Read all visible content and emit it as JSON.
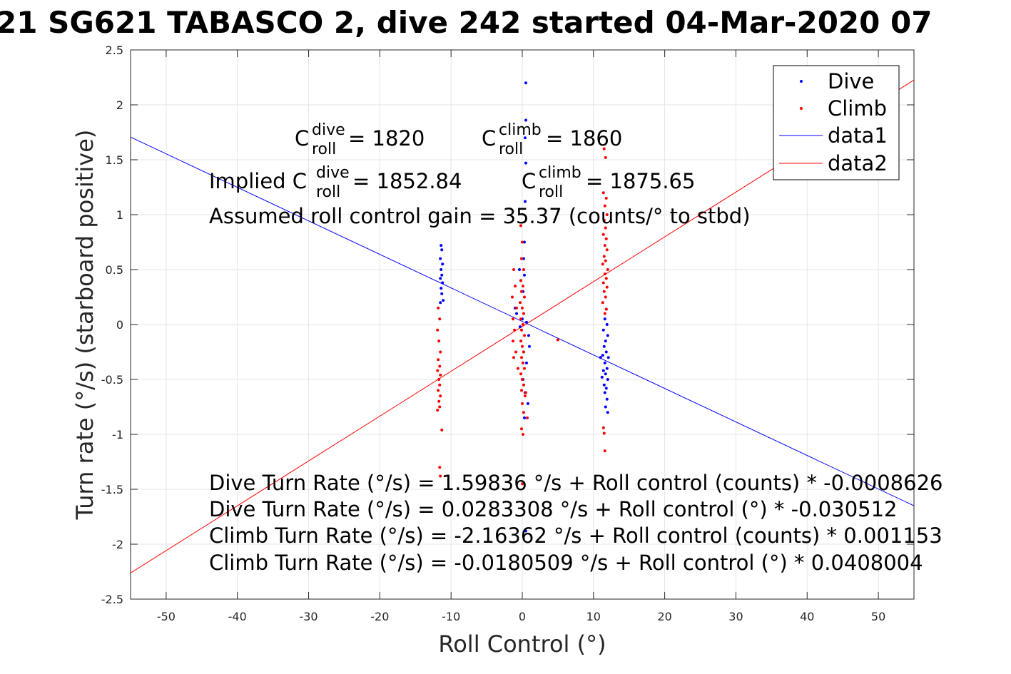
{
  "chart_data": {
    "type": "scatter",
    "title": "21 SG621 TABASCO 2, dive 242 started 04-Mar-2020 07",
    "xlabel": "Roll Control (°)",
    "ylabel": "Turn rate (°/s) (starboard positive)",
    "xlim": [
      -55,
      55
    ],
    "ylim": [
      -2.5,
      2.5
    ],
    "x_ticks": [
      "-50",
      "-40",
      "-30",
      "-20",
      "-10",
      "0",
      "10",
      "20",
      "30",
      "40",
      "50"
    ],
    "y_ticks": [
      "2.5",
      "2",
      "1.5",
      "1",
      "0.5",
      "0",
      "-0.5",
      "-1",
      "-1.5",
      "-2",
      "-2.5"
    ],
    "grid": true,
    "legend": {
      "placement": "top-right",
      "entries": [
        "Dive",
        "Climb",
        "data1",
        "data2"
      ]
    },
    "colors": {
      "dive": "#0000ff",
      "climb": "#ff0000"
    },
    "series": [
      {
        "name": "Dive",
        "marker": "dot",
        "points": [
          [
            -11.4,
            0.72
          ],
          [
            -11.3,
            0.68
          ],
          [
            -11.5,
            0.6
          ],
          [
            -11.2,
            0.55
          ],
          [
            -11.4,
            0.5
          ],
          [
            -11.3,
            0.45
          ],
          [
            -11.5,
            0.42
          ],
          [
            -11.2,
            0.38
          ],
          [
            -11.4,
            0.33
          ],
          [
            -11.3,
            0.28
          ],
          [
            -11.1,
            0.22
          ],
          [
            -11.5,
            0.2
          ],
          [
            0.5,
            2.2
          ],
          [
            0.5,
            1.86
          ],
          [
            0.4,
            1.7
          ],
          [
            0.5,
            1.47
          ],
          [
            0.4,
            1.12
          ],
          [
            0.3,
            0.75
          ],
          [
            0.2,
            0.6
          ],
          [
            -0.4,
            0.5
          ],
          [
            0.3,
            0.45
          ],
          [
            -0.2,
            0.4
          ],
          [
            0.1,
            0.3
          ],
          [
            -1.0,
            0.15
          ],
          [
            -0.8,
            0.1
          ],
          [
            0.0,
            0.05
          ],
          [
            0.6,
            0.02
          ],
          [
            -0.3,
            -0.02
          ],
          [
            0.9,
            -0.1
          ],
          [
            0.2,
            -0.25
          ],
          [
            0.6,
            -0.35
          ],
          [
            0.1,
            -0.5
          ],
          [
            0.4,
            -0.62
          ],
          [
            0.8,
            -0.72
          ],
          [
            0.3,
            -0.85
          ],
          [
            1.0,
            -0.2
          ],
          [
            0.5,
            -1.88
          ],
          [
            11.8,
            0.14
          ],
          [
            11.6,
            0.05
          ],
          [
            11.9,
            0.0
          ],
          [
            11.4,
            -0.05
          ],
          [
            12.0,
            -0.1
          ],
          [
            11.7,
            -0.15
          ],
          [
            11.5,
            -0.2
          ],
          [
            11.8,
            -0.25
          ],
          [
            11.3,
            -0.28
          ],
          [
            12.1,
            -0.3
          ],
          [
            11.6,
            -0.35
          ],
          [
            11.9,
            -0.4
          ],
          [
            11.4,
            -0.42
          ],
          [
            11.7,
            -0.45
          ],
          [
            11.2,
            -0.48
          ],
          [
            12.0,
            -0.5
          ],
          [
            11.5,
            -0.55
          ],
          [
            11.8,
            -0.58
          ],
          [
            11.6,
            -0.62
          ],
          [
            11.9,
            -0.68
          ],
          [
            11.7,
            -0.75
          ],
          [
            12.0,
            -0.8
          ],
          [
            11.0,
            -0.3
          ]
        ]
      },
      {
        "name": "Climb",
        "marker": "dot",
        "points": [
          [
            -11.8,
            0.15
          ],
          [
            -11.6,
            0.05
          ],
          [
            -11.9,
            -0.05
          ],
          [
            -11.7,
            -0.15
          ],
          [
            -11.5,
            -0.25
          ],
          [
            -11.8,
            -0.32
          ],
          [
            -11.6,
            -0.38
          ],
          [
            -11.9,
            -0.42
          ],
          [
            -11.5,
            -0.46
          ],
          [
            -11.7,
            -0.5
          ],
          [
            -11.6,
            -0.55
          ],
          [
            -11.8,
            -0.6
          ],
          [
            -11.5,
            -0.65
          ],
          [
            -11.7,
            -0.7
          ],
          [
            -11.6,
            -0.75
          ],
          [
            -11.9,
            -0.78
          ],
          [
            -11.3,
            -0.96
          ],
          [
            -11.6,
            -1.3
          ],
          [
            -11.5,
            -1.38
          ],
          [
            -1.2,
            0.5
          ],
          [
            -1.0,
            0.35
          ],
          [
            -1.4,
            0.25
          ],
          [
            -0.8,
            0.15
          ],
          [
            -1.3,
            0.05
          ],
          [
            -1.1,
            -0.05
          ],
          [
            -1.3,
            -0.15
          ],
          [
            -0.9,
            -0.25
          ],
          [
            -1.2,
            -0.3
          ],
          [
            -0.6,
            -0.4
          ],
          [
            -0.2,
            0.9
          ],
          [
            0.0,
            0.75
          ],
          [
            -0.1,
            0.6
          ],
          [
            0.2,
            0.5
          ],
          [
            -0.2,
            0.4
          ],
          [
            0.1,
            0.35
          ],
          [
            -0.1,
            0.3
          ],
          [
            0.3,
            0.25
          ],
          [
            -0.3,
            0.2
          ],
          [
            0.0,
            0.15
          ],
          [
            0.2,
            0.1
          ],
          [
            -0.2,
            0.05
          ],
          [
            0.1,
            0.0
          ],
          [
            -0.1,
            -0.05
          ],
          [
            0.3,
            -0.1
          ],
          [
            -0.2,
            -0.15
          ],
          [
            0.0,
            -0.2
          ],
          [
            0.2,
            -0.25
          ],
          [
            -0.1,
            -0.3
          ],
          [
            0.1,
            -0.35
          ],
          [
            0.3,
            -0.4
          ],
          [
            -0.2,
            -0.45
          ],
          [
            0.0,
            -0.5
          ],
          [
            0.2,
            -0.55
          ],
          [
            -0.1,
            -0.6
          ],
          [
            0.4,
            -0.65
          ],
          [
            0.0,
            -0.72
          ],
          [
            0.2,
            -0.8
          ],
          [
            0.7,
            -0.85
          ],
          [
            0.5,
            -0.62
          ],
          [
            -0.1,
            -0.95
          ],
          [
            0.1,
            -1.0
          ],
          [
            0.0,
            -1.45
          ],
          [
            5.0,
            -0.14
          ],
          [
            11.5,
            1.6
          ],
          [
            11.7,
            1.52
          ],
          [
            11.4,
            1.2
          ],
          [
            11.8,
            1.15
          ],
          [
            11.6,
            1.08
          ],
          [
            11.9,
            1.0
          ],
          [
            11.5,
            0.95
          ],
          [
            11.7,
            0.88
          ],
          [
            11.4,
            0.82
          ],
          [
            11.8,
            0.78
          ],
          [
            11.6,
            0.72
          ],
          [
            11.9,
            0.68
          ],
          [
            11.5,
            0.62
          ],
          [
            11.7,
            0.58
          ],
          [
            11.3,
            0.55
          ],
          [
            12.0,
            0.5
          ],
          [
            11.6,
            0.46
          ],
          [
            11.8,
            0.42
          ],
          [
            11.4,
            0.38
          ],
          [
            11.9,
            0.34
          ],
          [
            11.5,
            0.3
          ],
          [
            11.7,
            0.25
          ],
          [
            11.3,
            0.2
          ],
          [
            11.8,
            0.14
          ],
          [
            11.6,
            0.1
          ],
          [
            11.4,
            -0.94
          ],
          [
            11.5,
            -0.99
          ],
          [
            11.6,
            -1.15
          ]
        ]
      },
      {
        "name": "data1",
        "type": "line",
        "points": [
          [
            -55,
            1.7063
          ],
          [
            55,
            -1.6499
          ]
        ]
      },
      {
        "name": "data2",
        "type": "line",
        "points": [
          [
            -55,
            -2.2621
          ],
          [
            55,
            2.226
          ]
        ]
      }
    ],
    "annotations": {
      "c_dive": {
        "base": "C",
        "sup": "dive",
        "sub": "roll",
        "rest": " = 1820"
      },
      "c_climb": {
        "base": "C",
        "sup": "climb",
        "sub": "roll",
        "rest": " = 1860"
      },
      "implied_dive": {
        "prefix": "Implied C",
        "sup": "dive",
        "sub": "roll",
        "rest": " = 1852.84"
      },
      "implied_climb": {
        "base": "C",
        "sup": "climb",
        "sub": "roll",
        "rest": " = 1875.65"
      },
      "gain": "Assumed roll control gain = 35.37 (counts/° to stbd)",
      "equations": [
        "Dive Turn Rate (°/s) = 1.59836 °/s + Roll control (counts) * -0.0008626",
        "Dive Turn Rate (°/s) = 0.0283308 °/s + Roll control (°) * -0.030512",
        "Climb Turn Rate (°/s) = -2.16362 °/s + Roll control (counts) * 0.001153",
        "Climb Turn Rate (°/s) = -0.0180509 °/s + Roll control (°) * 0.0408004"
      ]
    }
  }
}
